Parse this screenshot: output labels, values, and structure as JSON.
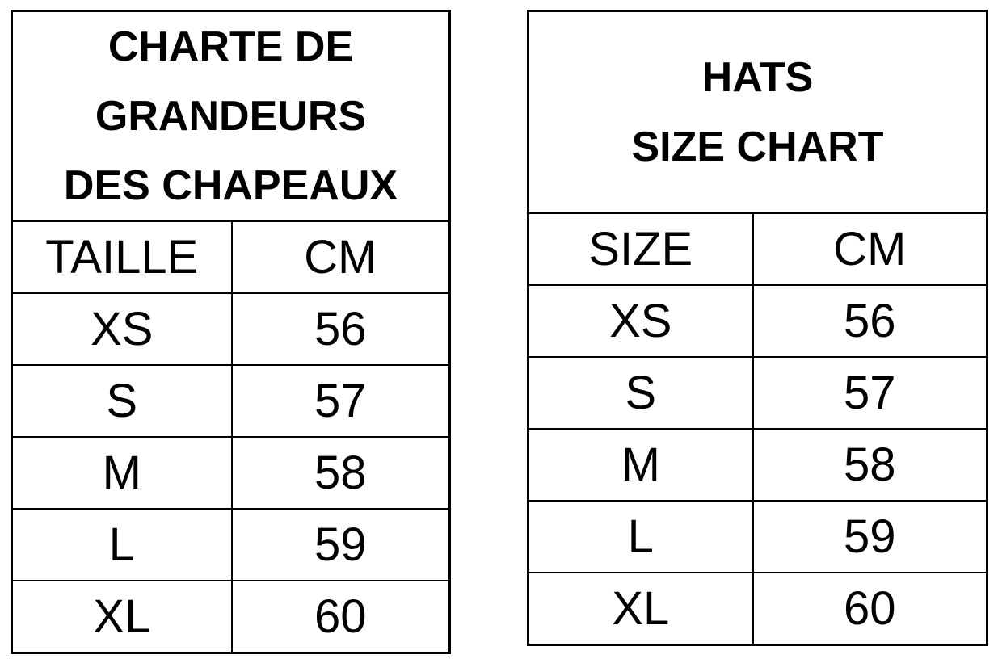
{
  "tables": {
    "french": {
      "title_lines": [
        "CHARTE DE",
        "GRANDEURS",
        "DES CHAPEAUX"
      ],
      "headers": [
        "TAILLE",
        "CM"
      ],
      "rows": [
        [
          "XS",
          "56"
        ],
        [
          "S",
          "57"
        ],
        [
          "M",
          "58"
        ],
        [
          "L",
          "59"
        ],
        [
          "XL",
          "60"
        ]
      ]
    },
    "english": {
      "title_lines": [
        "HATS",
        "SIZE CHART"
      ],
      "headers": [
        "SIZE",
        "CM"
      ],
      "rows": [
        [
          "XS",
          "56"
        ],
        [
          "S",
          "57"
        ],
        [
          "M",
          "58"
        ],
        [
          "L",
          "59"
        ],
        [
          "XL",
          "60"
        ]
      ]
    }
  }
}
